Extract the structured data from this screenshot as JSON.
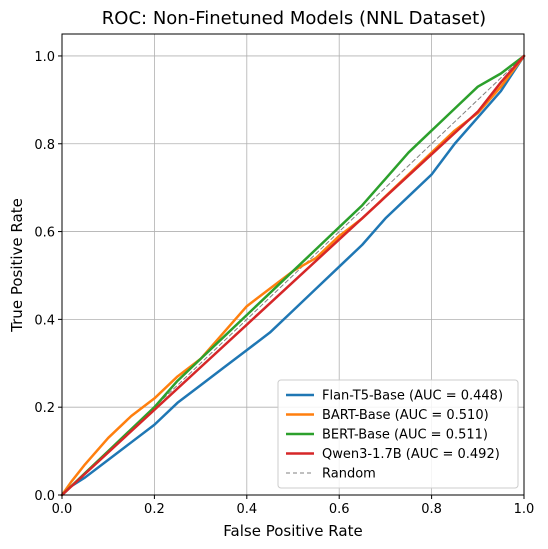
{
  "chart_data": {
    "type": "line",
    "title": "ROC: Non-Finetuned Models (NNL Dataset)",
    "xlabel": "False Positive Rate",
    "ylabel": "True Positive Rate",
    "xlim": [
      0.0,
      1.0
    ],
    "ylim": [
      0.0,
      1.05
    ],
    "x_ticks": [
      "0.0",
      "0.2",
      "0.4",
      "0.6",
      "0.8",
      "1.0"
    ],
    "y_ticks": [
      "0.0",
      "0.2",
      "0.4",
      "0.6",
      "0.8",
      "1.0"
    ],
    "grid": true,
    "legend_position": "lower-right",
    "series": [
      {
        "name": "Flan-T5-Base (AUC = 0.448)",
        "color": "#1f77b4",
        "style": "solid",
        "x": [
          0.0,
          0.02,
          0.05,
          0.1,
          0.15,
          0.2,
          0.25,
          0.3,
          0.35,
          0.4,
          0.45,
          0.5,
          0.55,
          0.6,
          0.65,
          0.7,
          0.75,
          0.8,
          0.85,
          0.9,
          0.95,
          1.0
        ],
        "y": [
          0.0,
          0.02,
          0.04,
          0.08,
          0.12,
          0.16,
          0.21,
          0.25,
          0.29,
          0.33,
          0.37,
          0.42,
          0.47,
          0.52,
          0.57,
          0.63,
          0.68,
          0.73,
          0.8,
          0.86,
          0.92,
          1.0
        ]
      },
      {
        "name": "BART-Base (AUC = 0.510)",
        "color": "#ff7f0e",
        "style": "solid",
        "x": [
          0.0,
          0.02,
          0.05,
          0.1,
          0.15,
          0.2,
          0.25,
          0.3,
          0.35,
          0.4,
          0.45,
          0.5,
          0.55,
          0.6,
          0.65,
          0.7,
          0.75,
          0.8,
          0.85,
          0.9,
          0.95,
          1.0
        ],
        "y": [
          0.0,
          0.03,
          0.07,
          0.13,
          0.18,
          0.22,
          0.27,
          0.31,
          0.37,
          0.43,
          0.47,
          0.51,
          0.54,
          0.59,
          0.63,
          0.68,
          0.73,
          0.78,
          0.83,
          0.87,
          0.93,
          1.0
        ]
      },
      {
        "name": "BERT-Base (AUC = 0.511)",
        "color": "#2ca02c",
        "style": "solid",
        "x": [
          0.0,
          0.02,
          0.05,
          0.1,
          0.15,
          0.2,
          0.25,
          0.3,
          0.35,
          0.4,
          0.45,
          0.5,
          0.55,
          0.6,
          0.65,
          0.7,
          0.75,
          0.8,
          0.85,
          0.9,
          0.95,
          1.0
        ],
        "y": [
          0.0,
          0.02,
          0.05,
          0.1,
          0.15,
          0.2,
          0.26,
          0.31,
          0.36,
          0.41,
          0.46,
          0.51,
          0.56,
          0.61,
          0.66,
          0.72,
          0.78,
          0.83,
          0.88,
          0.93,
          0.96,
          1.0
        ]
      },
      {
        "name": "Qwen3-1.7B (AUC = 0.492)",
        "color": "#d62728",
        "style": "solid",
        "x": [
          0.0,
          0.1,
          0.2,
          0.3,
          0.4,
          0.5,
          0.6,
          0.7,
          0.8,
          0.9,
          0.95,
          1.0
        ],
        "y": [
          0.0,
          0.097,
          0.194,
          0.291,
          0.388,
          0.485,
          0.582,
          0.679,
          0.776,
          0.873,
          0.94,
          1.0
        ]
      },
      {
        "name": "Random",
        "color": "#808080",
        "style": "dashed",
        "x": [
          0.0,
          1.0
        ],
        "y": [
          0.0,
          1.0
        ]
      }
    ]
  }
}
